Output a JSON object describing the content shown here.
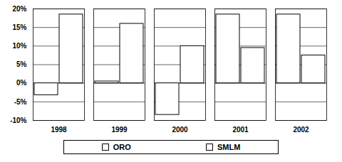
{
  "chart_data": {
    "type": "bar",
    "categories": [
      "1998",
      "1999",
      "2000",
      "2001",
      "2002"
    ],
    "series": [
      {
        "name": "ORO",
        "color": "#ffffff",
        "values": [
          -3.2,
          0.5,
          -8.5,
          18.5,
          18.5
        ]
      },
      {
        "name": "SMLM",
        "color": "#ffffff",
        "values": [
          18.5,
          16,
          10,
          9.5,
          7.5
        ]
      }
    ],
    "ylim": [
      -10,
      20
    ],
    "yticks": [
      {
        "value": -10,
        "label": "-10%"
      },
      {
        "value": -5,
        "label": "-5%"
      },
      {
        "value": 0,
        "label": "0%"
      },
      {
        "value": 5,
        "label": "5%"
      },
      {
        "value": 10,
        "label": "10%"
      },
      {
        "value": 15,
        "label": "15%"
      },
      {
        "value": 20,
        "label": "20%"
      }
    ],
    "grid": true,
    "legend": "bottom"
  }
}
